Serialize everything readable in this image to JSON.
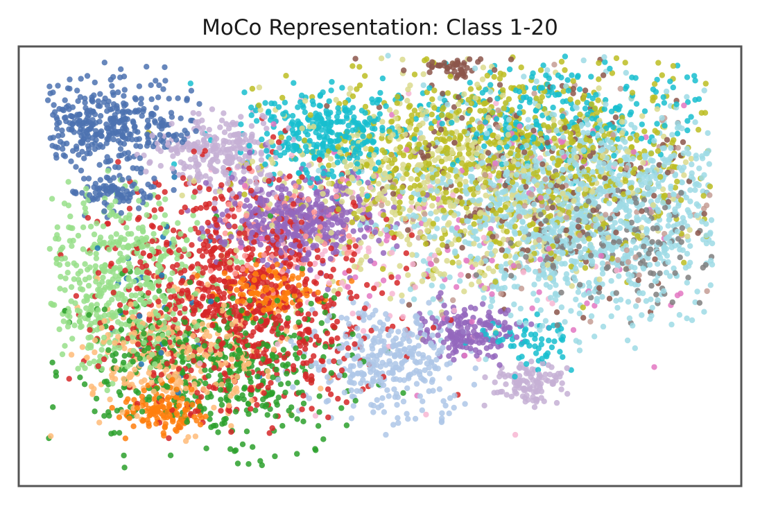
{
  "chart_data": {
    "type": "scatter",
    "title": "MoCo Representation: Class 1-20",
    "xlabel": "",
    "ylabel": "",
    "axis_ticks": false,
    "grid": false,
    "legend": "none",
    "xlim": [
      0,
      100
    ],
    "ylim": [
      0,
      100
    ],
    "palette": [
      "#1f77b4",
      "#aec7e8",
      "#ff7f0e",
      "#ffbb78",
      "#2ca02c",
      "#98df8a",
      "#d62728",
      "#ff9896",
      "#9467bd",
      "#c5b0d5",
      "#8c564b",
      "#c49c94",
      "#e377c2",
      "#f7b6d2",
      "#7f7f7f",
      "#c7c7c7",
      "#bcbd22",
      "#dbdb8d",
      "#17becf",
      "#9edae5"
    ],
    "marker_alpha": 0.85,
    "series": [
      {
        "color": "#4c72b0",
        "x": 12,
        "y": 83,
        "sx": 5.5,
        "sy": 5,
        "n": 380
      },
      {
        "color": "#4c72b0",
        "x": 13.5,
        "y": 67,
        "sx": 3,
        "sy": 2.5,
        "n": 90
      },
      {
        "color": "#c5b0d5",
        "x": 28,
        "y": 76,
        "sx": 4,
        "sy": 4,
        "n": 260
      },
      {
        "color": "#9467bd",
        "x": 39,
        "y": 61,
        "sx": 5.5,
        "sy": 5,
        "n": 460
      },
      {
        "color": "#17becf",
        "x": 42,
        "y": 80,
        "sx": 5,
        "sy": 5,
        "n": 320
      },
      {
        "color": "#9edae5",
        "x": 78,
        "y": 63,
        "sx": 12,
        "sy": 12,
        "n": 1300
      },
      {
        "color": "#bcbd22",
        "x": 68,
        "y": 75,
        "sx": 14,
        "sy": 11,
        "n": 850
      },
      {
        "color": "#dbdb8d",
        "x": 60,
        "y": 68,
        "sx": 14,
        "sy": 12,
        "n": 650
      },
      {
        "color": "#17becf",
        "x": 73,
        "y": 85,
        "sx": 12,
        "sy": 6,
        "n": 280
      },
      {
        "color": "#8c564b",
        "x": 70,
        "y": 70,
        "sx": 14,
        "sy": 14,
        "n": 200
      },
      {
        "color": "#7f7f7f",
        "x": 82,
        "y": 56,
        "sx": 8,
        "sy": 8,
        "n": 160
      },
      {
        "color": "#c49c94",
        "x": 74,
        "y": 64,
        "sx": 12,
        "sy": 12,
        "n": 130
      },
      {
        "color": "#8c564b",
        "x": 60,
        "y": 95,
        "sx": 2,
        "sy": 1,
        "n": 45
      },
      {
        "color": "#9467bd",
        "x": 62,
        "y": 35,
        "sx": 3.2,
        "sy": 3,
        "n": 170
      },
      {
        "color": "#c5b0d5",
        "x": 71,
        "y": 23,
        "sx": 2.5,
        "sy": 2.5,
        "n": 110
      },
      {
        "color": "#17becf",
        "x": 71,
        "y": 33,
        "sx": 3,
        "sy": 3,
        "n": 60
      },
      {
        "color": "#aec7e8",
        "x": 51,
        "y": 28,
        "sx": 5,
        "sy": 6,
        "n": 320
      },
      {
        "color": "#98df8a",
        "x": 14,
        "y": 50,
        "sx": 6,
        "sy": 8,
        "n": 380
      },
      {
        "color": "#98df8a",
        "x": 14,
        "y": 35,
        "sx": 5,
        "sy": 6,
        "n": 160
      },
      {
        "color": "#d62728",
        "x": 30,
        "y": 43,
        "sx": 9,
        "sy": 13,
        "n": 900
      },
      {
        "color": "#2ca02c",
        "x": 27,
        "y": 27,
        "sx": 10,
        "sy": 9,
        "n": 500
      },
      {
        "color": "#ff7f0e",
        "x": 35,
        "y": 44,
        "sx": 3.5,
        "sy": 3,
        "n": 130
      },
      {
        "color": "#ff7f0e",
        "x": 20,
        "y": 17,
        "sx": 3,
        "sy": 2.5,
        "n": 130
      },
      {
        "color": "#ffbb78",
        "x": 22,
        "y": 30,
        "sx": 7,
        "sy": 7,
        "n": 320
      },
      {
        "color": "#ff9896",
        "x": 37,
        "y": 58,
        "sx": 5,
        "sy": 6,
        "n": 100
      },
      {
        "color": "#e377c2",
        "x": 62,
        "y": 60,
        "sx": 15,
        "sy": 14,
        "n": 110
      },
      {
        "color": "#f7b6d2",
        "x": 55,
        "y": 55,
        "sx": 15,
        "sy": 16,
        "n": 90
      },
      {
        "color": "#1f77b4",
        "x": 22,
        "y": 40,
        "sx": 6,
        "sy": 10,
        "n": 30
      }
    ]
  }
}
